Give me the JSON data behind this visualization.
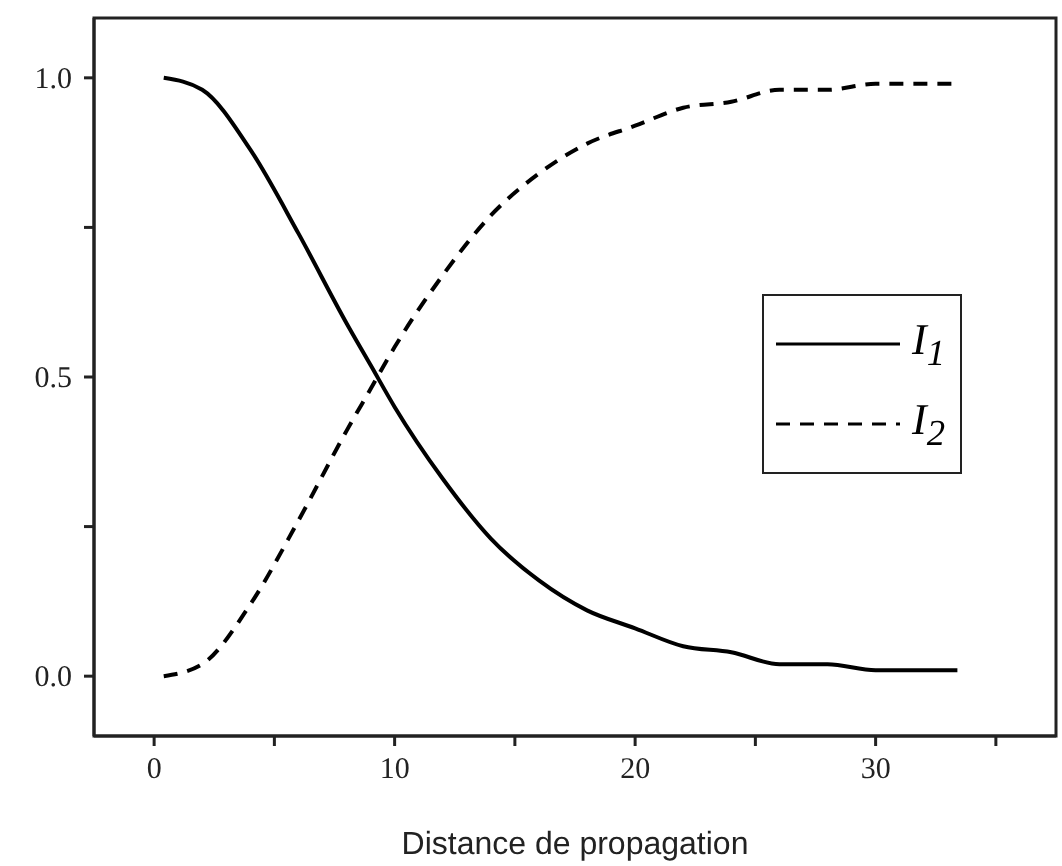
{
  "chart_data": {
    "type": "line",
    "xlabel": "Distance de propagation",
    "x": [
      0.4,
      2,
      4,
      6,
      8,
      9,
      10,
      12,
      14,
      16,
      18,
      20,
      22,
      24,
      26,
      28,
      30,
      32,
      33.4
    ],
    "series": [
      {
        "name": "I$_{1}$",
        "color": "#000000",
        "line_style": "solid",
        "values": [
          1.0,
          0.98,
          0.88,
          0.74,
          0.59,
          0.52,
          0.45,
          0.33,
          0.23,
          0.16,
          0.11,
          0.08,
          0.05,
          0.04,
          0.02,
          0.02,
          0.01,
          0.01,
          0.01
        ]
      },
      {
        "name": "I$_{2}$",
        "color": "#000000",
        "line_style": "dashed",
        "values": [
          0.0,
          0.02,
          0.12,
          0.26,
          0.41,
          0.48,
          0.55,
          0.67,
          0.77,
          0.84,
          0.89,
          0.92,
          0.95,
          0.96,
          0.98,
          0.98,
          0.99,
          0.99,
          0.99
        ]
      }
    ],
    "xlim": [
      -2.5,
      37.5
    ],
    "xticks": [
      0,
      {
        "value": 5,
        "label": null
      },
      10,
      {
        "value": 15,
        "label": null
      },
      20,
      {
        "value": 25,
        "label": null
      },
      30,
      {
        "value": 35,
        "label": null
      }
    ],
    "ylim": [
      -0.1,
      1.1
    ],
    "yticks": [
      {
        "value": 0,
        "label": "0.0"
      },
      {
        "value": 0.25,
        "label": null
      },
      {
        "value": 0.5,
        "label": "0.5"
      },
      {
        "value": 0.75,
        "label": null
      },
      {
        "value": 1,
        "label": "1.0"
      }
    ],
    "grid": false,
    "legend": "right",
    "marker": "none"
  }
}
